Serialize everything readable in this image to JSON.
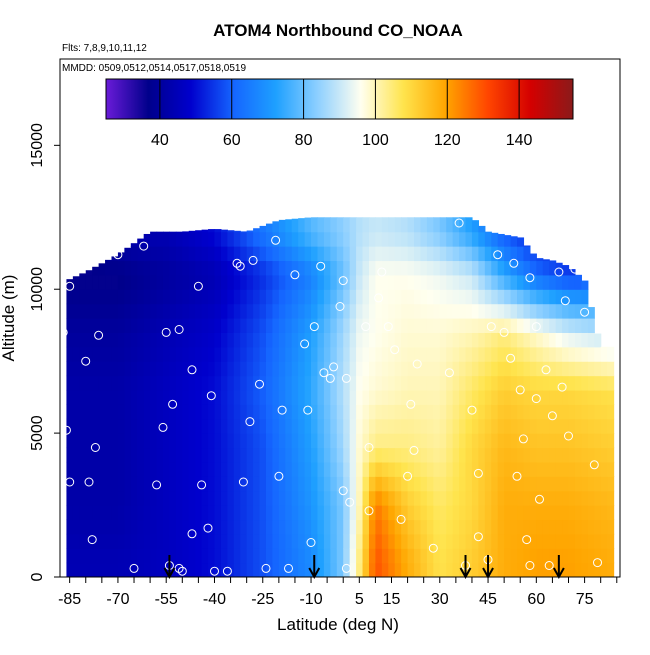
{
  "chart_data": {
    "type": "heatmap",
    "title": "ATOM4 Northbound CO_NOAA",
    "flights_label": "Flts: 7,8,9,10,11,12",
    "dates_label": "MMDD: 0509,0512,0514,0517,0518,0519",
    "xlabel": "Latitude (deg N)",
    "ylabel": "Altitude (m)",
    "xlim": [
      -88,
      86
    ],
    "ylim": [
      0,
      18000
    ],
    "x_ticks": [
      -85,
      -70,
      -55,
      -40,
      -25,
      -10,
      5,
      15,
      30,
      45,
      60,
      75
    ],
    "y_ticks": [
      0,
      5000,
      10000,
      15000
    ],
    "colorbar": {
      "range": [
        25,
        155
      ],
      "ticks": [
        40,
        60,
        80,
        100,
        120,
        140
      ],
      "colors": [
        "#6a1bd8",
        "#00008b",
        "#0000cd",
        "#1565ff",
        "#1ea0ff",
        "#8fd0ff",
        "#fffff0",
        "#ffe44d",
        "#ffa500",
        "#ff4500",
        "#d40000",
        "#8b1a1a"
      ]
    },
    "arrows_latitude": [
      -54,
      -9,
      38,
      45,
      67
    ],
    "column_top_altitude": [
      [
        -86,
        10300
      ],
      [
        -80,
        10600
      ],
      [
        -70,
        11200
      ],
      [
        -60,
        12000
      ],
      [
        -50,
        12000
      ],
      [
        -40,
        12100
      ],
      [
        -30,
        12000
      ],
      [
        -20,
        12400
      ],
      [
        -10,
        12500
      ],
      [
        0,
        12500
      ],
      [
        10,
        12500
      ],
      [
        20,
        12500
      ],
      [
        30,
        12500
      ],
      [
        40,
        12500
      ],
      [
        45,
        12000
      ],
      [
        50,
        11900
      ],
      [
        55,
        11800
      ],
      [
        60,
        11100
      ],
      [
        65,
        11000
      ],
      [
        70,
        10800
      ],
      [
        75,
        10300
      ],
      [
        80,
        8000
      ],
      [
        84,
        8000
      ]
    ],
    "field": {
      "latitudes": [
        -86,
        -70,
        -55,
        -40,
        -25,
        -10,
        0,
        5,
        10,
        20,
        30,
        40,
        50,
        60,
        70,
        84
      ],
      "altitudes": [
        500,
        2500,
        4500,
        6500,
        8500,
        10500,
        12000
      ],
      "values": [
        [
          44,
          44,
          46,
          50,
          58,
          68,
          82,
          104,
          130,
          118,
          108,
          112,
          118,
          120,
          120,
          118
        ],
        [
          42,
          42,
          46,
          50,
          58,
          70,
          82,
          100,
          125,
          112,
          106,
          110,
          118,
          118,
          118,
          116
        ],
        [
          42,
          42,
          46,
          50,
          58,
          72,
          86,
          98,
          104,
          104,
          102,
          110,
          116,
          114,
          114,
          112
        ],
        [
          42,
          42,
          46,
          50,
          60,
          74,
          88,
          96,
          98,
          100,
          100,
          106,
          112,
          110,
          110,
          108
        ],
        [
          40,
          40,
          44,
          48,
          58,
          72,
          86,
          94,
          96,
          98,
          98,
          100,
          104,
          98,
          92,
          88
        ],
        [
          36,
          36,
          40,
          44,
          54,
          66,
          80,
          90,
          96,
          96,
          94,
          90,
          74,
          62,
          56,
          56
        ],
        [
          44,
          44,
          44,
          50,
          64,
          78,
          84,
          88,
          90,
          88,
          82,
          72,
          58,
          50,
          48,
          48
        ]
      ]
    },
    "sample_points": [
      [
        -87,
        8500
      ],
      [
        -86,
        5100
      ],
      [
        -85,
        3300
      ],
      [
        -85,
        10100
      ],
      [
        -80,
        7500
      ],
      [
        -79,
        3300
      ],
      [
        -78,
        1300
      ],
      [
        -77,
        4500
      ],
      [
        -76,
        8400
      ],
      [
        -70,
        11200
      ],
      [
        -65,
        300
      ],
      [
        -62,
        11500
      ],
      [
        -58,
        3200
      ],
      [
        -56,
        5200
      ],
      [
        -55,
        8500
      ],
      [
        -54,
        400
      ],
      [
        -53,
        6000
      ],
      [
        -51,
        8600
      ],
      [
        -51,
        300
      ],
      [
        -50,
        200
      ],
      [
        -47,
        1500
      ],
      [
        -47,
        7200
      ],
      [
        -45,
        10100
      ],
      [
        -44,
        3200
      ],
      [
        -42,
        1700
      ],
      [
        -41,
        6300
      ],
      [
        -40,
        200
      ],
      [
        -36,
        200
      ],
      [
        -33,
        10900
      ],
      [
        -32,
        10800
      ],
      [
        -31,
        3300
      ],
      [
        -29,
        5400
      ],
      [
        -28,
        11000
      ],
      [
        -26,
        6700
      ],
      [
        -24,
        300
      ],
      [
        -21,
        11700
      ],
      [
        -20,
        3500
      ],
      [
        -19,
        5800
      ],
      [
        -17,
        300
      ],
      [
        -15,
        10500
      ],
      [
        -12,
        8100
      ],
      [
        -11,
        5800
      ],
      [
        -10,
        1200
      ],
      [
        -9,
        8700
      ],
      [
        -7,
        10800
      ],
      [
        -6,
        7100
      ],
      [
        -4,
        6900
      ],
      [
        -3,
        7300
      ],
      [
        -1,
        9400
      ],
      [
        0,
        3000
      ],
      [
        0,
        10300
      ],
      [
        1,
        6900
      ],
      [
        1,
        300
      ],
      [
        2,
        2600
      ],
      [
        7,
        8700
      ],
      [
        8,
        4500
      ],
      [
        8,
        2300
      ],
      [
        11,
        9700
      ],
      [
        12,
        10600
      ],
      [
        14,
        8700
      ],
      [
        16,
        7900
      ],
      [
        18,
        2000
      ],
      [
        20,
        3500
      ],
      [
        21,
        6000
      ],
      [
        22,
        4400
      ],
      [
        23,
        7400
      ],
      [
        28,
        1000
      ],
      [
        33,
        7100
      ],
      [
        36,
        12300
      ],
      [
        38,
        400
      ],
      [
        40,
        5800
      ],
      [
        42,
        3600
      ],
      [
        42,
        1400
      ],
      [
        45,
        600
      ],
      [
        46,
        8700
      ],
      [
        48,
        11200
      ],
      [
        50,
        8500
      ],
      [
        52,
        7600
      ],
      [
        53,
        10900
      ],
      [
        54,
        3500
      ],
      [
        55,
        6500
      ],
      [
        56,
        4800
      ],
      [
        57,
        1300
      ],
      [
        58,
        400
      ],
      [
        58,
        10400
      ],
      [
        60,
        8700
      ],
      [
        60,
        6200
      ],
      [
        61,
        2700
      ],
      [
        63,
        7200
      ],
      [
        64,
        400
      ],
      [
        65,
        5600
      ],
      [
        67,
        10600
      ],
      [
        68,
        6600
      ],
      [
        69,
        9600
      ],
      [
        70,
        4900
      ],
      [
        72,
        10700
      ],
      [
        75,
        9200
      ],
      [
        78,
        3900
      ],
      [
        79,
        500
      ]
    ]
  }
}
